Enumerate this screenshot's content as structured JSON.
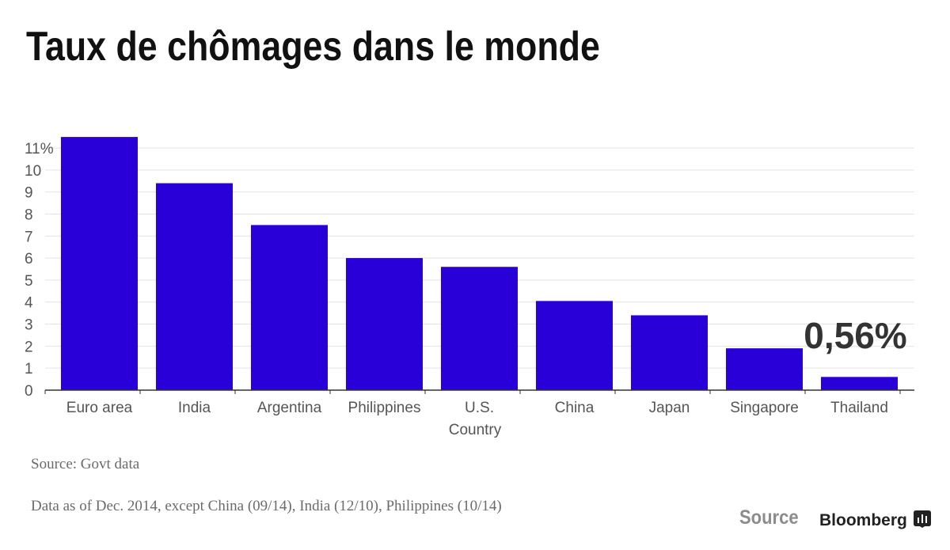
{
  "title": "Taux de chômages dans le monde",
  "source": "Source: Govt data",
  "note": "Data as of Dec. 2014, except China (09/14), India (12/10), Philippines (10/14)",
  "footer": {
    "source_label": "Source",
    "brand": "Bloomberg",
    "brand_icon": "bloomberg-chart-icon"
  },
  "colors": {
    "bar": "#2a00d8",
    "grid": "#e3e3e3",
    "axis": "#333333"
  },
  "chart_data": {
    "type": "bar",
    "title": "Taux de chômages dans le monde",
    "xlabel": "Country",
    "ylabel": "",
    "categories": [
      "Euro area",
      "India",
      "Argentina",
      "Philippines",
      "U.S.",
      "China",
      "Japan",
      "Singapore",
      "Thailand"
    ],
    "values": [
      11.5,
      9.4,
      7.5,
      6.0,
      5.6,
      4.05,
      3.4,
      1.9,
      0.6
    ],
    "ylim": [
      0,
      11
    ],
    "yticks": [
      0,
      1,
      2,
      3,
      4,
      5,
      6,
      7,
      8,
      9,
      10,
      11
    ],
    "ytick_labels": [
      "0",
      "1",
      "2",
      "3",
      "4",
      "5",
      "6",
      "7",
      "8",
      "9",
      "10",
      "11%"
    ],
    "grid": true,
    "legend": "none",
    "annotations": [
      {
        "category": "Thailand",
        "text": "0,56%"
      }
    ]
  }
}
